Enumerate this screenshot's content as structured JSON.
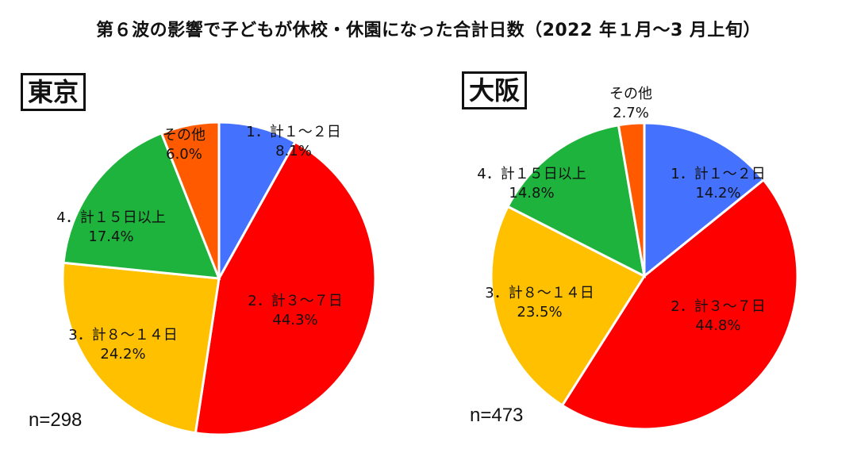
{
  "title": "第６波の影響で子どもが休校・休園になった合計日数（2022 年１月～3 月上旬）",
  "chart_data": [
    {
      "type": "pie",
      "name": "東京",
      "n_label": "n=298",
      "slices": [
        {
          "label": "1．計１～２日",
          "value": 8.1,
          "value_label": "8.1%",
          "color": "#4472ff"
        },
        {
          "label": "2．計３～７日",
          "value": 44.3,
          "value_label": "44.3%",
          "color": "#ff0000"
        },
        {
          "label": "3．計８～１４日",
          "value": 24.2,
          "value_label": "24.2%",
          "color": "#ffc000"
        },
        {
          "label": "4．計１５日以上",
          "value": 17.4,
          "value_label": "17.4%",
          "color": "#1eb33c"
        },
        {
          "label": "その他",
          "value": 6.0,
          "value_label": "6.0%",
          "color": "#ff5a00"
        }
      ]
    },
    {
      "type": "pie",
      "name": "大阪",
      "n_label": "n=473",
      "slices": [
        {
          "label": "1．計１～２日",
          "value": 14.2,
          "value_label": "14.2%",
          "color": "#4472ff"
        },
        {
          "label": "2．計３～７日",
          "value": 44.8,
          "value_label": "44.8%",
          "color": "#ff0000"
        },
        {
          "label": "3．計８～１４日",
          "value": 23.5,
          "value_label": "23.5%",
          "color": "#ffc000"
        },
        {
          "label": "4．計１５日以上",
          "value": 14.8,
          "value_label": "14.8%",
          "color": "#1eb33c"
        },
        {
          "label": "その他",
          "value": 2.7,
          "value_label": "2.7%",
          "color": "#ff5a00"
        }
      ]
    }
  ]
}
